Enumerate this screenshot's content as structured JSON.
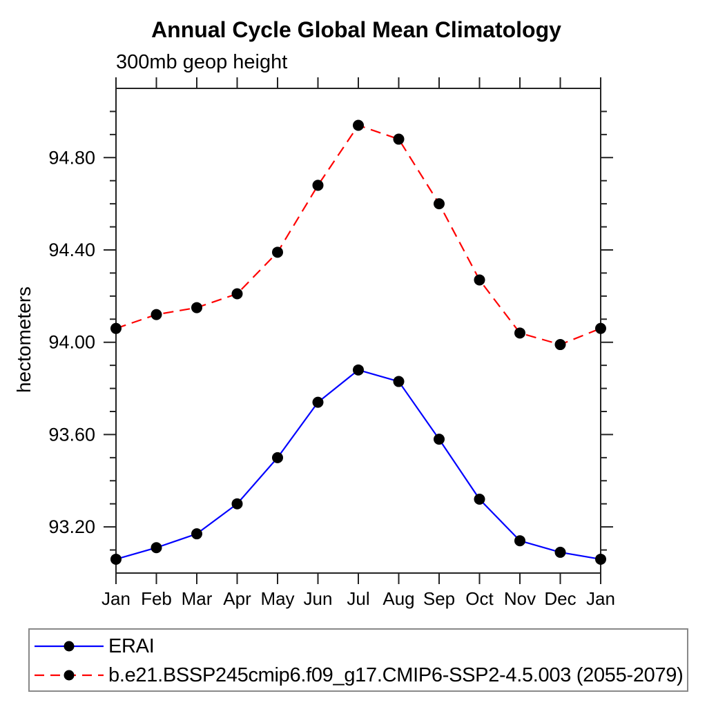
{
  "page": {
    "background": "#ffffff"
  },
  "chart_data": {
    "type": "line",
    "title": "Annual Cycle Global Mean Climatology",
    "subtitle": "300mb geop height",
    "ylabel": "hectometers",
    "xlabel": "",
    "categories": [
      "Jan",
      "Feb",
      "Mar",
      "Apr",
      "May",
      "Jun",
      "Jul",
      "Aug",
      "Sep",
      "Oct",
      "Nov",
      "Dec",
      "Jan"
    ],
    "ylim": [
      93.0,
      95.1
    ],
    "y_major_ticks": [
      94.8,
      94.4,
      94.0,
      93.6,
      93.2
    ],
    "y_major_tick_labels": [
      "94.80",
      "94.40",
      "94.00",
      "93.60",
      "93.20"
    ],
    "y_minor_tick_interval": 0.1,
    "grid": false,
    "legend_position": "bottom",
    "axis_color": "#222222",
    "series": [
      {
        "name": "ERAI",
        "color": "#0000ff",
        "line_style": "solid",
        "marker": "filled-circle",
        "marker_color": "#000000",
        "values": [
          93.06,
          93.11,
          93.17,
          93.3,
          93.5,
          93.74,
          93.88,
          93.83,
          93.58,
          93.32,
          93.14,
          93.09,
          93.06
        ]
      },
      {
        "name": "b.e21.BSSP245cmip6.f09_g17.CMIP6-SSP2-4.5.003 (2055-2079)",
        "color": "#ff0000",
        "line_style": "dashed",
        "marker": "filled-circle",
        "marker_color": "#000000",
        "values": [
          94.06,
          94.12,
          94.15,
          94.21,
          94.39,
          94.68,
          94.94,
          94.88,
          94.6,
          94.27,
          94.04,
          93.99,
          94.06
        ]
      }
    ]
  }
}
